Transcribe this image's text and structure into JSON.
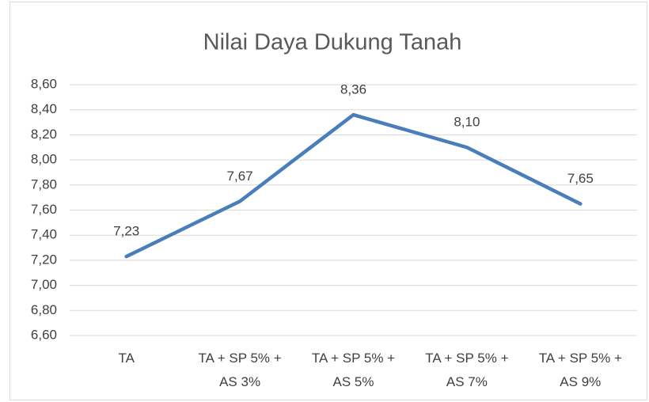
{
  "chart_data": {
    "type": "line",
    "title": "Nilai Daya Dukung Tanah",
    "categories": [
      "TA",
      "TA + SP 5% + AS 3%",
      "TA + SP 5% + AS 5%",
      "TA + SP 5% + AS 7%",
      "TA + SP 5% + AS 9%"
    ],
    "series": [
      {
        "name": "Nilai Daya Dukung Tanah",
        "color": "#4a7ebb",
        "values": [
          7.23,
          7.67,
          8.36,
          8.1,
          7.65
        ],
        "value_labels": [
          "7,23",
          "7,67",
          "8,36",
          "8,10",
          "7,65"
        ]
      }
    ],
    "ylim": [
      6.6,
      8.6
    ],
    "yticks": [
      {
        "value": 6.6,
        "label": "6,60"
      },
      {
        "value": 6.8,
        "label": "6,80"
      },
      {
        "value": 7.0,
        "label": "7,00"
      },
      {
        "value": 7.2,
        "label": "7,20"
      },
      {
        "value": 7.4,
        "label": "7,40"
      },
      {
        "value": 7.6,
        "label": "7,60"
      },
      {
        "value": 7.8,
        "label": "7,80"
      },
      {
        "value": 8.0,
        "label": "8,00"
      },
      {
        "value": 8.2,
        "label": "8,20"
      },
      {
        "value": 8.4,
        "label": "8,40"
      },
      {
        "value": 8.6,
        "label": "8,60"
      }
    ],
    "grid": true
  }
}
